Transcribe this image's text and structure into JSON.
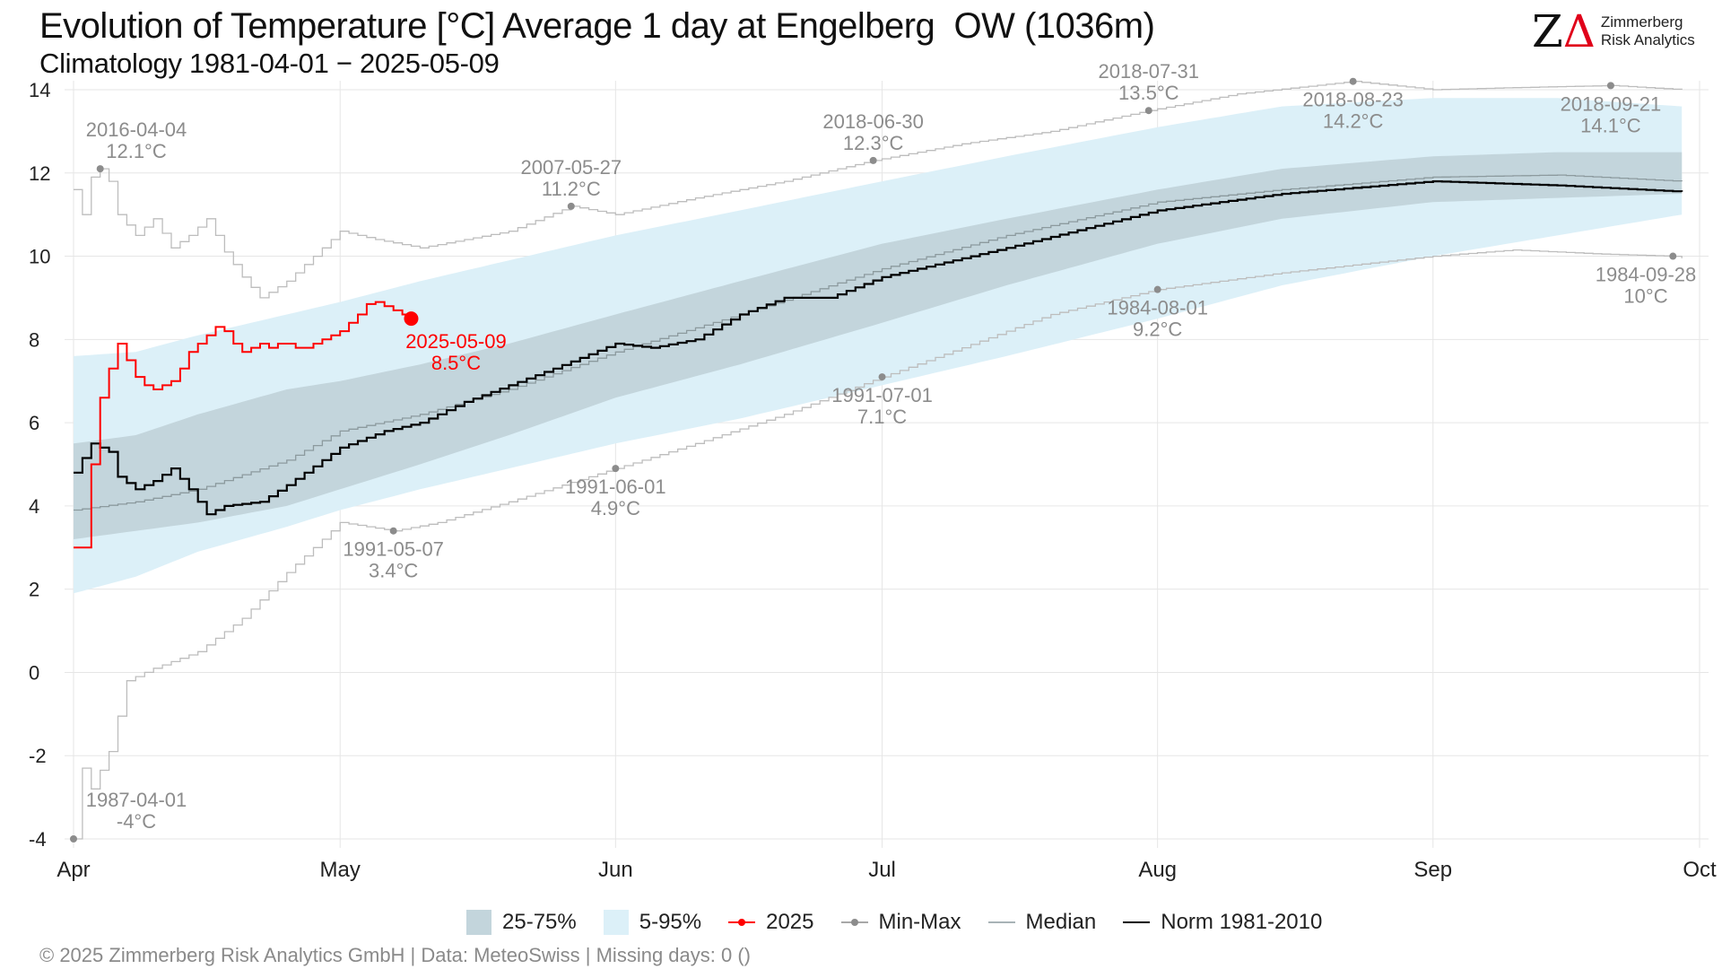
{
  "header": {
    "title": "Evolution of Temperature [°C] Average 1 day at Engelberg  OW (1036m)",
    "subtitle": "Climatology 1981-04-01 − 2025-05-09"
  },
  "logo": {
    "mark_z": "Z",
    "mark_delta": "Δ",
    "line1": "Zimmerberg",
    "line2": "Risk Analytics"
  },
  "footer": "©  2025 Zimmerberg Risk Analytics GmbH | Data: MeteoSwiss | Missing days: 0 ()",
  "colors": {
    "band_iqr": "#c3d5dc",
    "band_5_95": "#dcf0f8",
    "current": "#ff0000",
    "minmax": "#bdbdbd",
    "minmax_point": "#8c8c8c",
    "median": "#8c9a9e",
    "norm": "#000000",
    "grid": "#e6e6e6",
    "annotation": "#8c8c8c"
  },
  "chart_data": {
    "type": "line",
    "title": "Evolution of Temperature [°C] Average 1 day at Engelberg  OW (1036m)",
    "subtitle": "Climatology 1981-04-01 − 2025-05-09",
    "xlabel": "",
    "ylabel": "",
    "x_range": [
      "04-01",
      "10-01"
    ],
    "ylim": [
      -4,
      14
    ],
    "y_ticks": [
      -4,
      -2,
      0,
      2,
      4,
      6,
      8,
      10,
      12,
      14
    ],
    "x_ticks": [
      {
        "date": "04-01",
        "label": "Apr"
      },
      {
        "date": "05-01",
        "label": "May"
      },
      {
        "date": "06-01",
        "label": "Jun"
      },
      {
        "date": "07-01",
        "label": "Jul"
      },
      {
        "date": "08-01",
        "label": "Aug"
      },
      {
        "date": "09-01",
        "label": "Sep"
      },
      {
        "date": "10-01",
        "label": "Oct"
      }
    ],
    "grid": true,
    "legend": {
      "position": "bottom",
      "entries": [
        "25-75%",
        "5-95%",
        "2025",
        "Min-Max",
        "Median",
        "Norm 1981-2010"
      ]
    },
    "series": {
      "p05": [
        [
          "04-01",
          1.9
        ],
        [
          "04-08",
          2.3
        ],
        [
          "04-15",
          2.9
        ],
        [
          "04-25",
          3.5
        ],
        [
          "05-01",
          3.9
        ],
        [
          "05-10",
          4.4
        ],
        [
          "05-20",
          4.9
        ],
        [
          "06-01",
          5.5
        ],
        [
          "06-15",
          6.1
        ],
        [
          "07-01",
          6.9
        ],
        [
          "07-15",
          7.6
        ],
        [
          "08-01",
          8.5
        ],
        [
          "08-15",
          9.3
        ],
        [
          "09-01",
          10.0
        ],
        [
          "09-15",
          10.5
        ],
        [
          "09-29",
          11.0
        ]
      ],
      "p95": [
        [
          "04-01",
          7.6
        ],
        [
          "04-08",
          7.7
        ],
        [
          "04-15",
          8.1
        ],
        [
          "04-25",
          8.6
        ],
        [
          "05-01",
          8.9
        ],
        [
          "05-10",
          9.4
        ],
        [
          "05-20",
          9.9
        ],
        [
          "06-01",
          10.5
        ],
        [
          "06-15",
          11.1
        ],
        [
          "07-01",
          11.8
        ],
        [
          "07-15",
          12.4
        ],
        [
          "08-01",
          13.1
        ],
        [
          "08-15",
          13.6
        ],
        [
          "09-01",
          13.8
        ],
        [
          "09-15",
          13.8
        ],
        [
          "09-29",
          13.6
        ]
      ],
      "p25": [
        [
          "04-01",
          3.2
        ],
        [
          "04-08",
          3.4
        ],
        [
          "04-15",
          3.6
        ],
        [
          "04-25",
          4.0
        ],
        [
          "05-01",
          4.4
        ],
        [
          "05-10",
          5.0
        ],
        [
          "05-20",
          5.7
        ],
        [
          "06-01",
          6.6
        ],
        [
          "06-15",
          7.4
        ],
        [
          "07-01",
          8.4
        ],
        [
          "07-15",
          9.3
        ],
        [
          "08-01",
          10.3
        ],
        [
          "08-15",
          10.9
        ],
        [
          "09-01",
          11.3
        ],
        [
          "09-15",
          11.4
        ],
        [
          "09-29",
          11.5
        ]
      ],
      "p75": [
        [
          "04-01",
          5.5
        ],
        [
          "04-08",
          5.7
        ],
        [
          "04-15",
          6.2
        ],
        [
          "04-25",
          6.8
        ],
        [
          "05-01",
          7.0
        ],
        [
          "05-10",
          7.4
        ],
        [
          "05-20",
          7.9
        ],
        [
          "06-01",
          8.6
        ],
        [
          "06-15",
          9.4
        ],
        [
          "07-01",
          10.3
        ],
        [
          "07-15",
          10.9
        ],
        [
          "08-01",
          11.6
        ],
        [
          "08-15",
          12.1
        ],
        [
          "09-01",
          12.4
        ],
        [
          "09-15",
          12.5
        ],
        [
          "09-29",
          12.5
        ]
      ],
      "median": [
        [
          "04-01",
          3.9
        ],
        [
          "04-08",
          4.1
        ],
        [
          "04-15",
          4.4
        ],
        [
          "04-25",
          5.1
        ],
        [
          "05-01",
          5.8
        ],
        [
          "05-10",
          6.2
        ],
        [
          "05-20",
          6.8
        ],
        [
          "06-01",
          7.7
        ],
        [
          "06-15",
          8.6
        ],
        [
          "07-01",
          9.7
        ],
        [
          "07-15",
          10.5
        ],
        [
          "08-01",
          11.3
        ],
        [
          "08-15",
          11.6
        ],
        [
          "09-01",
          11.9
        ],
        [
          "09-15",
          11.95
        ],
        [
          "09-29",
          11.8
        ]
      ],
      "norm": [
        [
          "04-01",
          4.8
        ],
        [
          "04-03",
          5.5
        ],
        [
          "04-05",
          5.3
        ],
        [
          "04-06",
          4.7
        ],
        [
          "04-08",
          4.4
        ],
        [
          "04-10",
          4.6
        ],
        [
          "04-12",
          4.9
        ],
        [
          "04-14",
          4.4
        ],
        [
          "04-16",
          3.8
        ],
        [
          "04-18",
          4.0
        ],
        [
          "04-22",
          4.1
        ],
        [
          "04-25",
          4.5
        ],
        [
          "05-01",
          5.4
        ],
        [
          "05-06",
          5.8
        ],
        [
          "05-10",
          6.0
        ],
        [
          "05-15",
          6.5
        ],
        [
          "05-20",
          6.9
        ],
        [
          "05-25",
          7.3
        ],
        [
          "06-01",
          7.9
        ],
        [
          "06-05",
          7.8
        ],
        [
          "06-10",
          8.0
        ],
        [
          "06-15",
          8.6
        ],
        [
          "06-20",
          9.0
        ],
        [
          "06-25",
          9.0
        ],
        [
          "07-01",
          9.5
        ],
        [
          "07-15",
          10.2
        ],
        [
          "08-01",
          11.1
        ],
        [
          "08-15",
          11.5
        ],
        [
          "09-01",
          11.8
        ],
        [
          "09-15",
          11.7
        ],
        [
          "09-29",
          11.55
        ]
      ],
      "current": [
        [
          "04-01",
          3.0
        ],
        [
          "04-02",
          3.0
        ],
        [
          "04-03",
          5.0
        ],
        [
          "04-04",
          6.6
        ],
        [
          "04-05",
          7.3
        ],
        [
          "04-06",
          7.9
        ],
        [
          "04-07",
          7.5
        ],
        [
          "04-08",
          7.1
        ],
        [
          "04-09",
          6.9
        ],
        [
          "04-10",
          6.8
        ],
        [
          "04-11",
          6.9
        ],
        [
          "04-12",
          7.0
        ],
        [
          "04-13",
          7.3
        ],
        [
          "04-14",
          7.7
        ],
        [
          "04-15",
          7.9
        ],
        [
          "04-16",
          8.1
        ],
        [
          "04-17",
          8.3
        ],
        [
          "04-18",
          8.2
        ],
        [
          "04-19",
          7.9
        ],
        [
          "04-20",
          7.7
        ],
        [
          "04-21",
          7.8
        ],
        [
          "04-22",
          7.9
        ],
        [
          "04-23",
          7.8
        ],
        [
          "04-24",
          7.9
        ],
        [
          "04-25",
          7.9
        ],
        [
          "04-26",
          7.8
        ],
        [
          "04-27",
          7.8
        ],
        [
          "04-28",
          7.9
        ],
        [
          "04-29",
          8.0
        ],
        [
          "04-30",
          8.1
        ],
        [
          "05-01",
          8.2
        ],
        [
          "05-02",
          8.4
        ],
        [
          "05-03",
          8.6
        ],
        [
          "05-04",
          8.85
        ],
        [
          "05-05",
          8.9
        ],
        [
          "05-06",
          8.8
        ],
        [
          "05-07",
          8.7
        ],
        [
          "05-08",
          8.6
        ],
        [
          "05-09",
          8.5
        ]
      ],
      "max": [
        [
          "04-01",
          11.6
        ],
        [
          "04-02",
          11.0
        ],
        [
          "04-03",
          11.9
        ],
        [
          "04-04",
          12.1
        ],
        [
          "04-05",
          11.8
        ],
        [
          "04-06",
          11.0
        ],
        [
          "04-08",
          10.5
        ],
        [
          "04-10",
          10.9
        ],
        [
          "04-12",
          10.2
        ],
        [
          "04-14",
          10.5
        ],
        [
          "04-16",
          10.9
        ],
        [
          "04-18",
          10.1
        ],
        [
          "04-20",
          9.5
        ],
        [
          "04-22",
          9.0
        ],
        [
          "04-25",
          9.4
        ],
        [
          "05-01",
          10.6
        ],
        [
          "05-05",
          10.4
        ],
        [
          "05-10",
          10.2
        ],
        [
          "05-20",
          10.6
        ],
        [
          "05-27",
          11.2
        ],
        [
          "06-01",
          11.0
        ],
        [
          "06-10",
          11.4
        ],
        [
          "06-20",
          11.8
        ],
        [
          "06-30",
          12.3
        ],
        [
          "07-10",
          12.7
        ],
        [
          "07-20",
          13.0
        ],
        [
          "07-31",
          13.5
        ],
        [
          "08-10",
          13.9
        ],
        [
          "08-23",
          14.2
        ],
        [
          "09-01",
          14.0
        ],
        [
          "09-10",
          14.05
        ],
        [
          "09-21",
          14.1
        ],
        [
          "09-29",
          14.0
        ]
      ],
      "min": [
        [
          "04-01",
          -4.0
        ],
        [
          "04-02",
          -2.3
        ],
        [
          "04-03",
          -2.8
        ],
        [
          "04-05",
          -1.9
        ],
        [
          "04-07",
          -0.2
        ],
        [
          "04-10",
          0.1
        ],
        [
          "04-15",
          0.5
        ],
        [
          "04-20",
          1.3
        ],
        [
          "04-25",
          2.4
        ],
        [
          "05-01",
          3.6
        ],
        [
          "05-04",
          3.5
        ],
        [
          "05-07",
          3.4
        ],
        [
          "05-12",
          3.6
        ],
        [
          "05-20",
          4.1
        ],
        [
          "06-01",
          4.9
        ],
        [
          "06-10",
          5.5
        ],
        [
          "06-20",
          6.2
        ],
        [
          "07-01",
          7.1
        ],
        [
          "07-10",
          7.8
        ],
        [
          "07-20",
          8.6
        ],
        [
          "08-01",
          9.2
        ],
        [
          "08-15",
          9.6
        ],
        [
          "09-01",
          10.0
        ],
        [
          "09-10",
          10.15
        ],
        [
          "09-20",
          10.05
        ],
        [
          "09-28",
          10.0
        ],
        [
          "09-29",
          9.95
        ]
      ]
    },
    "markers": {
      "max": [
        {
          "date": "04-04",
          "value": 12.1,
          "label1": "2016-04-04",
          "label2": "12.1°C"
        },
        {
          "date": "05-27",
          "value": 11.2,
          "label1": "2007-05-27",
          "label2": "11.2°C"
        },
        {
          "date": "06-30",
          "value": 12.3,
          "label1": "2018-06-30",
          "label2": "12.3°C"
        },
        {
          "date": "07-31",
          "value": 13.5,
          "label1": "2018-07-31",
          "label2": "13.5°C"
        },
        {
          "date": "08-23",
          "value": 14.2,
          "label1": "2018-08-23",
          "label2": "14.2°C"
        },
        {
          "date": "09-21",
          "value": 14.1,
          "label1": "2018-09-21",
          "label2": "14.1°C"
        }
      ],
      "min": [
        {
          "date": "04-01",
          "value": -4.0,
          "label1": "1987-04-01",
          "label2": "-4°C"
        },
        {
          "date": "05-07",
          "value": 3.4,
          "label1": "1991-05-07",
          "label2": "3.4°C"
        },
        {
          "date": "06-01",
          "value": 4.9,
          "label1": "1991-06-01",
          "label2": "4.9°C"
        },
        {
          "date": "07-01",
          "value": 7.1,
          "label1": "1991-07-01",
          "label2": "7.1°C"
        },
        {
          "date": "08-01",
          "value": 9.2,
          "label1": "1984-08-01",
          "label2": "9.2°C"
        },
        {
          "date": "09-28",
          "value": 10.0,
          "label1": "1984-09-28",
          "label2": "10°C"
        }
      ],
      "current": {
        "date": "05-09",
        "value": 8.5,
        "label1": "2025-05-09",
        "label2": "8.5°C"
      }
    }
  }
}
